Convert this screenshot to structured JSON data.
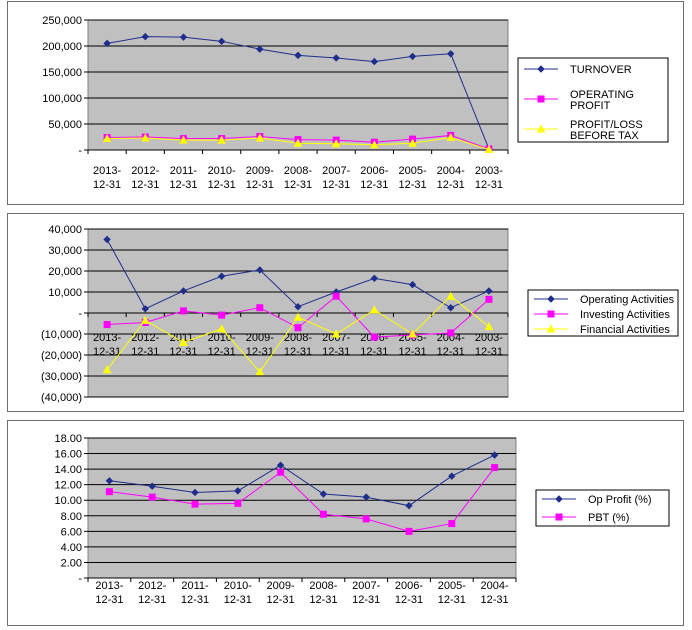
{
  "chart_data": [
    {
      "type": "line",
      "categories": [
        "2013-12-31",
        "2012-12-31",
        "2011-12-31",
        "2010-12-31",
        "2009-12-31",
        "2008-12-31",
        "2007-12-31",
        "2006-12-31",
        "2005-12-31",
        "2004-12-31",
        "2003-12-31"
      ],
      "yticks": [
        "-",
        "50,000",
        "100,000",
        "150,000",
        "200,000",
        "250,000"
      ],
      "ylim": [
        0,
        250000
      ],
      "grid": true,
      "legend": "right",
      "series": [
        {
          "name": "TURNOVER",
          "color": "#1f2d8c",
          "marker": "diamond",
          "values": [
            205000,
            218000,
            217000,
            209000,
            194000,
            182000,
            177000,
            170000,
            180000,
            185000,
            2000
          ]
        },
        {
          "name": "OPERATING PROFIT",
          "color": "#ff00ff",
          "marker": "square",
          "values": [
            24000,
            25000,
            22000,
            22000,
            26000,
            20000,
            19000,
            15000,
            21000,
            28000,
            2000
          ]
        },
        {
          "name": "PROFIT/LOSS BEFORE TAX",
          "color": "#ffff00",
          "marker": "triangle",
          "values": [
            22000,
            23000,
            19000,
            19000,
            23000,
            13000,
            12000,
            10000,
            13000,
            24000,
            1000
          ]
        }
      ]
    },
    {
      "type": "line",
      "categories": [
        "2013-12-31",
        "2012-12-31",
        "2011-12-31",
        "2010-12-31",
        "2009-12-31",
        "2008-12-31",
        "2007-12-31",
        "2006-12-31",
        "2005-12-31",
        "2004-12-31",
        "2003-12-31"
      ],
      "yticks": [
        "(40,000)",
        "(30,000)",
        "(20,000)",
        "(10,000)",
        "-",
        "10,000",
        "20,000",
        "30,000",
        "40,000"
      ],
      "ylim": [
        -40000,
        40000
      ],
      "grid": true,
      "legend": "right",
      "series": [
        {
          "name": "Operating Activities",
          "color": "#1f2d8c",
          "marker": "diamond",
          "values": [
            35000,
            2000,
            10500,
            17500,
            20500,
            3000,
            10000,
            16500,
            13500,
            2500,
            10500
          ]
        },
        {
          "name": "Investing Activities",
          "color": "#ff00ff",
          "marker": "square",
          "values": [
            -5500,
            -4500,
            1000,
            -1000,
            2500,
            -7000,
            8000,
            -11500,
            -10500,
            -9500,
            6500
          ]
        },
        {
          "name": "Financial Activities",
          "color": "#ffff00",
          "marker": "triangle",
          "values": [
            -27000,
            -3500,
            -14000,
            -7500,
            -28000,
            -2000,
            -10000,
            1500,
            -10000,
            8000,
            -6500
          ]
        }
      ]
    },
    {
      "type": "line",
      "categories": [
        "2013-12-31",
        "2012-12-31",
        "2011-12-31",
        "2010-12-31",
        "2009-12-31",
        "2008-12-31",
        "2007-12-31",
        "2006-12-31",
        "2005-12-31",
        "2004-12-31"
      ],
      "yticks": [
        "-",
        "2.00",
        "4.00",
        "6.00",
        "8.00",
        "10.00",
        "12.00",
        "14.00",
        "16.00",
        "18.00"
      ],
      "ylim": [
        0,
        18
      ],
      "grid": true,
      "legend": "right",
      "series": [
        {
          "name": "Op Profit (%)",
          "color": "#1f2d8c",
          "marker": "diamond",
          "values": [
            12.5,
            11.8,
            11.0,
            11.2,
            14.5,
            10.8,
            10.4,
            9.3,
            13.1,
            15.8
          ]
        },
        {
          "name": "PBT (%)",
          "color": "#ff00ff",
          "marker": "square",
          "values": [
            11.1,
            10.4,
            9.5,
            9.6,
            13.6,
            8.2,
            7.6,
            6.0,
            7.0,
            14.2
          ]
        }
      ]
    }
  ]
}
